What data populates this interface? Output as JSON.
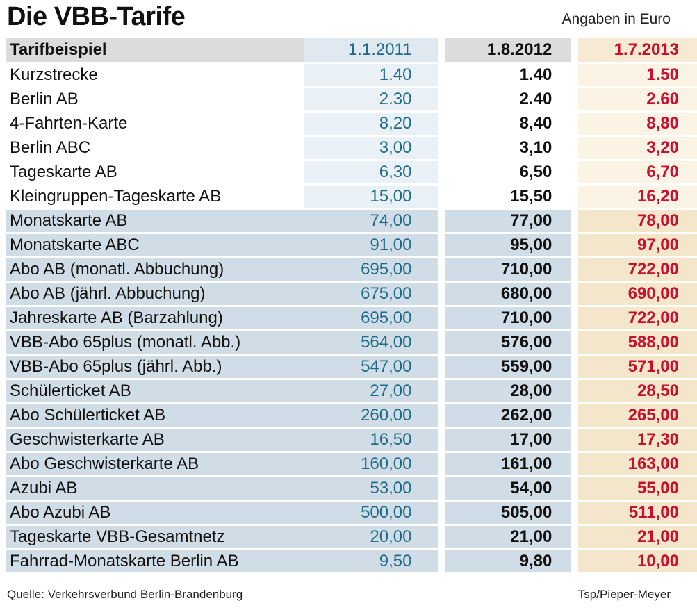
{
  "title": "Die VBB-Tarife",
  "unit_note": "Angaben in Euro",
  "header": {
    "label": "Tarifbeispiel",
    "date1": "1.1.2011",
    "date2": "1.8.2012",
    "date3": "1.7.2013"
  },
  "rows": [
    {
      "label": "Kurzstrecke",
      "v2011": "1.40",
      "v2012": "1.40",
      "v2013": "1.50"
    },
    {
      "label": "Berlin AB",
      "v2011": "2.30",
      "v2012": "2.40",
      "v2013": "2.60"
    },
    {
      "label": "4-Fahrten-Karte",
      "v2011": "8,20",
      "v2012": "8,40",
      "v2013": "8,80"
    },
    {
      "label": "Berlin ABC",
      "v2011": "3,00",
      "v2012": "3,10",
      "v2013": "3,20"
    },
    {
      "label": "Tageskarte AB",
      "v2011": "6,30",
      "v2012": "6,50",
      "v2013": "6,70"
    },
    {
      "label": "Kleingruppen-Tageskarte AB",
      "v2011": "15,00",
      "v2012": "15,50",
      "v2013": "16,20"
    },
    {
      "label": "Monatskarte AB",
      "v2011": "74,00",
      "v2012": "77,00",
      "v2013": "78,00"
    },
    {
      "label": "Monatskarte ABC",
      "v2011": "91,00",
      "v2012": "95,00",
      "v2013": "97,00"
    },
    {
      "label": "Abo AB (monatl. Abbuchung)",
      "v2011": "695,00",
      "v2012": "710,00",
      "v2013": "722,00"
    },
    {
      "label": "Abo AB (jährl. Abbuchung)",
      "v2011": "675,00",
      "v2012": "680,00",
      "v2013": "690,00"
    },
    {
      "label": "Jahreskarte AB (Barzahlung)",
      "v2011": "695,00",
      "v2012": "710,00",
      "v2013": "722,00"
    },
    {
      "label": "VBB-Abo 65plus (monatl. Abb.)",
      "v2011": "564,00",
      "v2012": "576,00",
      "v2013": "588,00"
    },
    {
      "label": "VBB-Abo 65plus (jährl. Abb.)",
      "v2011": "547,00",
      "v2012": "559,00",
      "v2013": "571,00"
    },
    {
      "label": "Schülerticket AB",
      "v2011": "27,00",
      "v2012": "28,00",
      "v2013": "28,50"
    },
    {
      "label": "Abo Schülerticket AB",
      "v2011": "260,00",
      "v2012": "262,00",
      "v2013": "265,00"
    },
    {
      "label": "Geschwisterkarte AB",
      "v2011": "16,50",
      "v2012": "17,00",
      "v2013": "17,30"
    },
    {
      "label": "Abo Geschwisterkarte AB",
      "v2011": "160,00",
      "v2012": "161,00",
      "v2013": "163,00"
    },
    {
      "label": "Azubi AB",
      "v2011": "53,00",
      "v2012": "54,00",
      "v2013": "55,00"
    },
    {
      "label": "Abo Azubi AB",
      "v2011": "500,00",
      "v2012": "505,00",
      "v2013": "511,00"
    },
    {
      "label": "Tageskarte VBB-Gesamtnetz",
      "v2011": "20,00",
      "v2012": "21,00",
      "v2013": "21,00"
    },
    {
      "label": "Fahrrad-Monatskarte Berlin AB",
      "v2011": "9,50",
      "v2012": "9,80",
      "v2013": "10,00"
    }
  ],
  "source": "Quelle: Verkehrsverbund Berlin-Brandenburg",
  "credit": "Tsp/Pieper-Meyer",
  "colors": {
    "col_2011_text": "#1e6b8a",
    "col_2013_text": "#c8102e",
    "highlight_row": "#d0dde7"
  }
}
